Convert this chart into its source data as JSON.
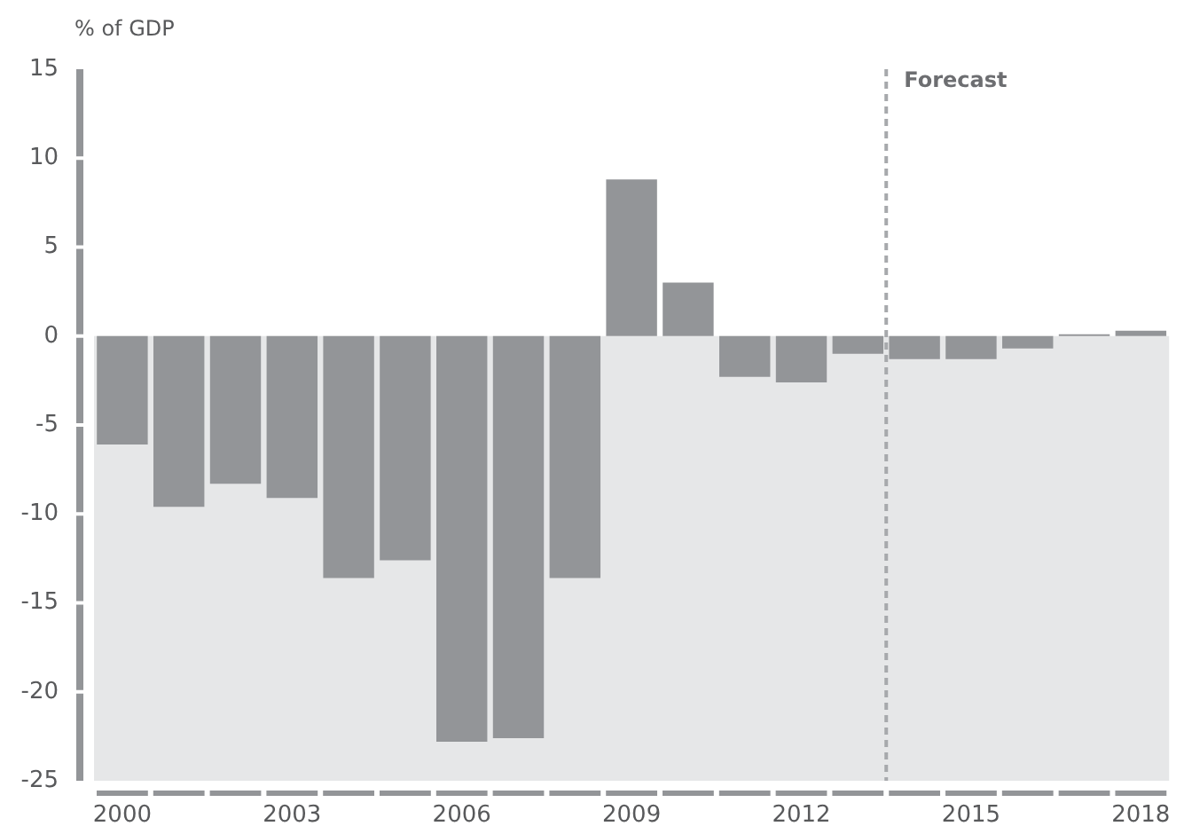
{
  "chart_data": {
    "type": "bar",
    "ylabel": "% of GDP",
    "x": [
      2000,
      2001,
      2002,
      2003,
      2004,
      2005,
      2006,
      2007,
      2008,
      2009,
      2010,
      2011,
      2012,
      2013,
      2014,
      2015,
      2016,
      2017,
      2018
    ],
    "values": [
      -6.1,
      -9.6,
      -8.3,
      -9.1,
      -13.6,
      -12.6,
      -22.8,
      -22.6,
      -13.6,
      8.8,
      3.0,
      -2.3,
      -2.6,
      -1.0,
      -1.3,
      -1.3,
      -0.7,
      0.1,
      0.3
    ],
    "color": "#939598",
    "xlim": [
      1999.5,
      2018.5
    ],
    "xticks": [
      2000,
      2003,
      2006,
      2009,
      2012,
      2015,
      2018
    ],
    "ylim": [
      -25,
      15
    ],
    "yticks": [
      -25,
      -20,
      -15,
      -10,
      -5,
      0,
      5,
      10,
      15
    ],
    "ref_lines": [
      {
        "axis": "x",
        "value": 2013.5,
        "label": "Forecast",
        "color": "#a7a9ac",
        "line_style": "dashed"
      }
    ],
    "bands": [
      {
        "axis": "y",
        "from": -25,
        "to": 0,
        "color": "#e6e7e8"
      }
    ]
  }
}
